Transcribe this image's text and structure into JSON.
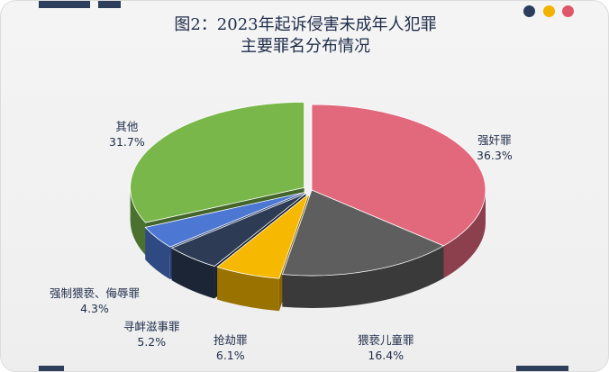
{
  "chart_data": {
    "type": "pie",
    "title": "图2：2023年起诉侵害未成年人犯罪",
    "subtitle": "主要罪名分布情况",
    "categories": [
      "强奸罪",
      "猥亵儿童罪",
      "抢劫罪",
      "寻衅滋事罪",
      "强制猥亵、侮辱罪",
      "其他"
    ],
    "values": [
      36.3,
      16.4,
      6.1,
      5.2,
      4.3,
      31.7
    ],
    "value_labels": [
      "36.3%",
      "16.4%",
      "6.1%",
      "5.2%",
      "4.3%",
      "31.7%"
    ],
    "colors": [
      "#e2687c",
      "#5e5e5e",
      "#f6b800",
      "#2d3b55",
      "#4c78d3",
      "#79b74a"
    ],
    "style": "3d-exploded"
  },
  "decor": {
    "dot_colors": [
      "#2c3e5c",
      "#f3b100",
      "#e0576a"
    ]
  }
}
